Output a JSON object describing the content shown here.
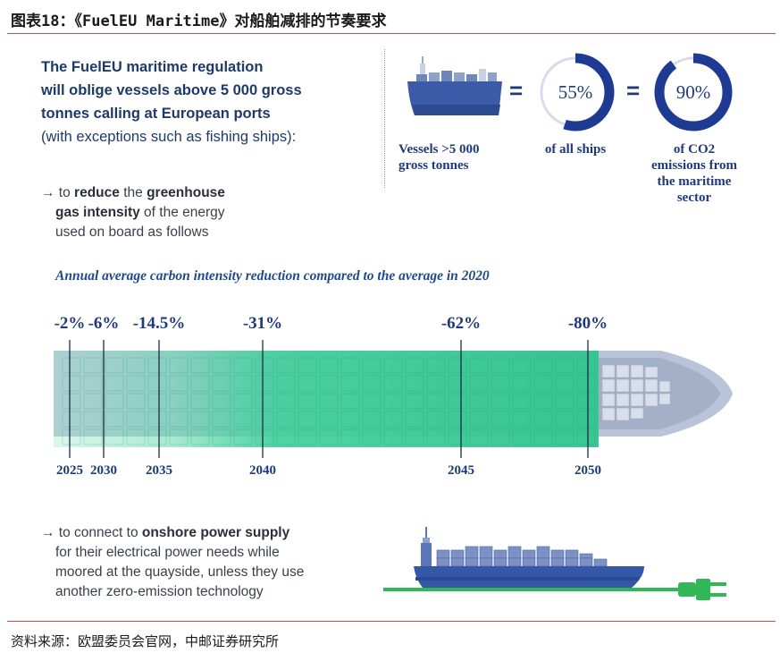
{
  "figure": {
    "title": "图表18：《FuelEU Maritime》对船舶减排的节奏要求",
    "source": "资料来源：欧盟委员会官网，中邮证券研究所"
  },
  "intro": {
    "bold_lines": [
      "The FuelEU maritime regulation",
      "will oblige vessels above 5 000 gross",
      "tonnes calling at European ports"
    ],
    "note": "(with exceptions such as fishing ships):"
  },
  "bullet_1": {
    "arrow": "→",
    "pre": " to ",
    "bold_1": "reduce",
    "mid": " the ",
    "bold_2": "greenhouse",
    "bold_3": "gas intensity",
    "post": " of the energy",
    "line_3": "used on board as follows"
  },
  "stats": {
    "vessels_label_1": "Vessels  >5 000",
    "vessels_label_2": "gross tonnes",
    "eq_symbol": "=",
    "share_ships": {
      "value": 55,
      "display": "55%",
      "label": "of all ships"
    },
    "share_co2": {
      "value": 90,
      "display": "90%",
      "label_lines": [
        "of CO2",
        "emissions from",
        "the maritime",
        "sector"
      ]
    },
    "accent_color": "#1f3a93"
  },
  "timeline": {
    "title": "Annual average carbon intensity reduction compared to the average in 2020",
    "milestones": [
      {
        "year": "2025",
        "reduction": "-2%"
      },
      {
        "year": "2030",
        "reduction": "-6%"
      },
      {
        "year": "2035",
        "reduction": "-14.5%"
      },
      {
        "year": "2040",
        "reduction": "-31%"
      },
      {
        "year": "2045",
        "reduction": "-62%"
      },
      {
        "year": "2050",
        "reduction": "-80%"
      }
    ],
    "bar_color": "#3ecf9a"
  },
  "bullet_2": {
    "arrow": "→",
    "pre": " to connect to ",
    "bold": "onshore power supply",
    "lines": [
      "for their electrical power needs while",
      "moored at the quayside, unless they use",
      "another zero-emission technology"
    ],
    "plug_color": "#2fb855"
  }
}
